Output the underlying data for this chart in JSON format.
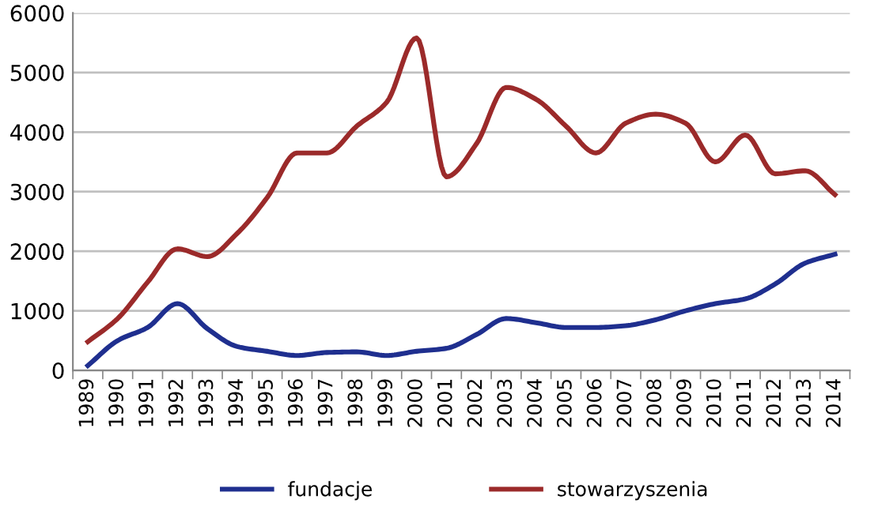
{
  "chart_data": {
    "type": "line",
    "categories": [
      "1989",
      "1990",
      "1991",
      "1992",
      "1993",
      "1994",
      "1995",
      "1996",
      "1997",
      "1998",
      "1999",
      "2000",
      "2001",
      "2002",
      "2003",
      "2004",
      "2005",
      "2006",
      "2007",
      "2008",
      "2009",
      "2010",
      "2011",
      "2012",
      "2013",
      "2014"
    ],
    "series": [
      {
        "name": "fundacje",
        "color": "#1f2f8f",
        "values": [
          80,
          500,
          720,
          1120,
          700,
          400,
          320,
          250,
          300,
          310,
          250,
          320,
          370,
          600,
          870,
          800,
          720,
          720,
          750,
          850,
          1000,
          1120,
          1200,
          1450,
          1800,
          1950
        ]
      },
      {
        "name": "stowarzyszenia",
        "color": "#9b2a2a",
        "values": [
          480,
          870,
          1480,
          2040,
          1910,
          2300,
          2900,
          3650,
          3650,
          4100,
          4500,
          5580,
          3250,
          3800,
          4750,
          4550,
          4100,
          3650,
          4150,
          4300,
          4150,
          3500,
          3950,
          3300,
          3350,
          2950
        ]
      }
    ],
    "ylim": [
      0,
      6000
    ],
    "yticks": [
      0,
      1000,
      2000,
      3000,
      4000,
      5000,
      6000
    ],
    "grid": "y",
    "legend": "bottom",
    "marker": "none",
    "line_style": "solid"
  }
}
